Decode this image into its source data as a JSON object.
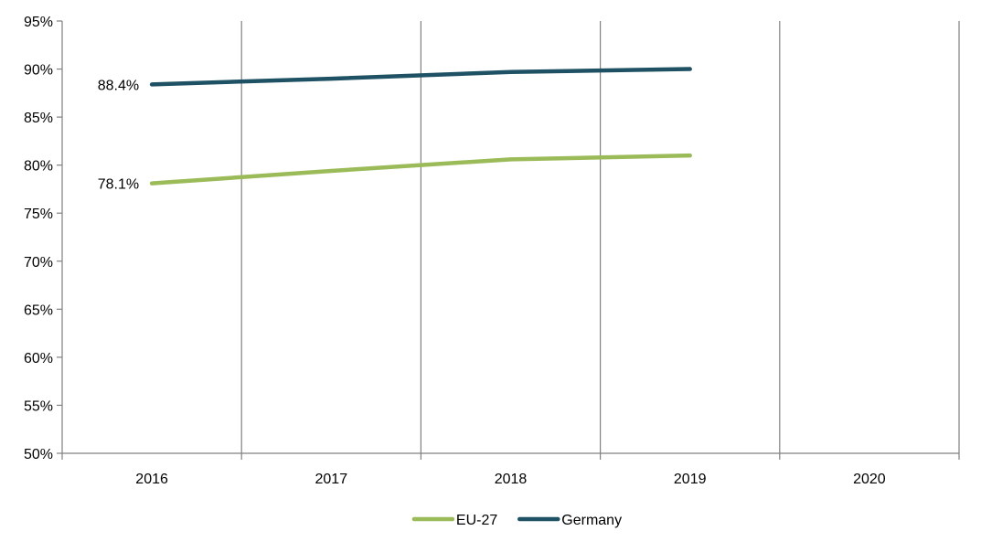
{
  "chart_data": {
    "type": "line",
    "title": "",
    "xlabel": "",
    "ylabel": "",
    "categories": [
      "2016",
      "2017",
      "2018",
      "2019",
      "2020"
    ],
    "y_ticks": [
      "50%",
      "55%",
      "60%",
      "65%",
      "70%",
      "75%",
      "80%",
      "85%",
      "90%",
      "95%"
    ],
    "ylim": [
      50,
      95
    ],
    "grid": "vertical",
    "legend_position": "bottom",
    "series": [
      {
        "name": "EU-27",
        "color": "#9bbb59",
        "values": [
          78.1,
          79.4,
          80.6,
          81.0,
          null
        ],
        "labels": [
          "78.1%",
          "",
          "",
          "",
          ""
        ]
      },
      {
        "name": "Germany",
        "color": "#1f5165",
        "values": [
          88.4,
          89.0,
          89.7,
          90.0,
          null
        ],
        "labels": [
          "88.4%",
          "",
          "",
          "",
          ""
        ]
      }
    ]
  }
}
